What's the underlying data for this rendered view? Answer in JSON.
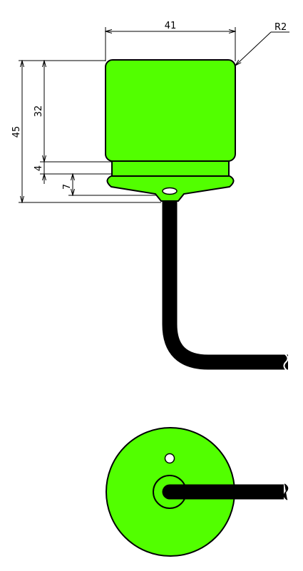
{
  "drawing": {
    "dimensions": {
      "width": "41",
      "radius": "R2",
      "height_total": "45",
      "height_body": "32",
      "height_groove": "4",
      "height_nose": "7"
    }
  },
  "colors": {
    "body_fill": "#52FF00",
    "cable": "#000000",
    "line": "#000000",
    "background": "#FFFFFF"
  }
}
